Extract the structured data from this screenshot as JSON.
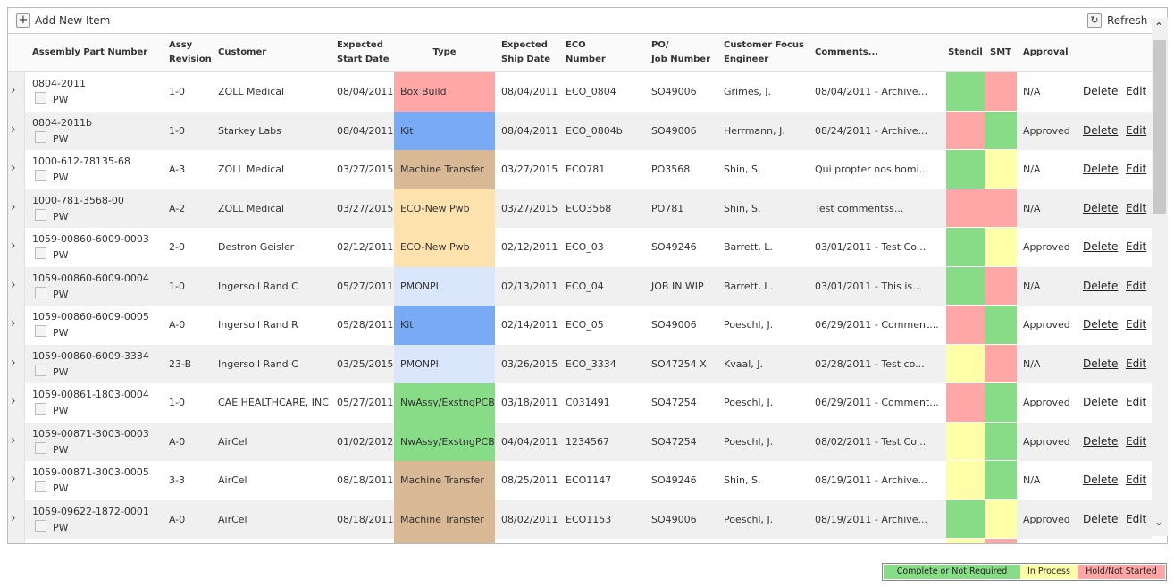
{
  "toolbar": {
    "add_label": "Add New Item",
    "refresh_label": "Refresh"
  },
  "columns": [
    {
      "lines": [
        "Assembly Part Number"
      ]
    },
    {
      "lines": [
        "Assy",
        "Revision"
      ]
    },
    {
      "lines": [
        "Customer"
      ]
    },
    {
      "lines": [
        "Expected",
        "Start Date"
      ]
    },
    {
      "lines": [
        "Type"
      ]
    },
    {
      "lines": [
        "Expected",
        "Ship Date"
      ]
    },
    {
      "lines": [
        "ECO",
        "Number"
      ]
    },
    {
      "lines": [
        "PO/",
        "Job Number"
      ]
    },
    {
      "lines": [
        "Customer Focus",
        "Engineer"
      ]
    },
    {
      "lines": [
        "Comments..."
      ]
    },
    {
      "lines": [
        "Stencil"
      ]
    },
    {
      "lines": [
        "SMT"
      ]
    },
    {
      "lines": [
        "Approval"
      ]
    }
  ],
  "row_labels": {
    "pw": "PW",
    "delete": "Delete",
    "edit": "Edit"
  },
  "rows": [
    {
      "part": "0804-2011",
      "rev": "1-0",
      "customer": "ZOLL Medical",
      "start": "08/04/2011",
      "type": "Box Build",
      "type_color": "#ffa6a6",
      "ship": "08/04/2011",
      "eco": "ECO_0804",
      "po": "SO49006",
      "engineer": "Grimes, J.",
      "comments": "08/04/2011 - Archive...",
      "stencil": "#88dc88",
      "smt": "#ffa6a6",
      "approval": "N/A"
    },
    {
      "part": "0804-2011b",
      "rev": "1-0",
      "customer": "Starkey Labs",
      "start": "08/04/2011",
      "type": "Kit",
      "type_color": "#79aaf5",
      "ship": "08/04/2011",
      "eco": "ECO_0804b",
      "po": "SO49006",
      "engineer": "Herrmann, J.",
      "comments": "08/24/2011 - Archive...",
      "stencil": "#ffa6a6",
      "smt": "#88dc88",
      "approval": "Approved"
    },
    {
      "part": "1000-612-78135-68",
      "rev": "A-3",
      "customer": "ZOLL Medical",
      "start": "03/27/2015",
      "type": "Machine Transfer",
      "type_color": "#d9b895",
      "ship": "03/27/2015",
      "eco": "ECO781",
      "po": "PO3568",
      "engineer": "Shin, S.",
      "comments": "Qui propter nos homi...",
      "stencil": "#88dc88",
      "smt": "#ffffaa",
      "approval": "N/A"
    },
    {
      "part": "1000-781-3568-00",
      "rev": "A-2",
      "customer": "ZOLL Medical",
      "start": "03/27/2015",
      "type": "ECO-New Pwb",
      "type_color": "#fde2ae",
      "ship": "03/27/2015",
      "eco": "ECO3568",
      "po": "PO781",
      "engineer": "Shin, S.",
      "comments": "Test commentss...",
      "stencil": "#ffa6a6",
      "smt": "#ffa6a6",
      "approval": "N/A"
    },
    {
      "part": "1059-00860-6009-0003",
      "rev": "2-0",
      "customer": "Destron Geisler",
      "start": "02/12/2011",
      "type": "ECO-New Pwb",
      "type_color": "#fde2ae",
      "ship": "02/12/2011",
      "eco": "ECO_03",
      "po": "SO49246",
      "engineer": "Barrett, L.",
      "comments": "03/01/2011 - Test Co...",
      "stencil": "#88dc88",
      "smt": "#ffffaa",
      "approval": "Approved"
    },
    {
      "part": "1059-00860-6009-0004",
      "rev": "1-0",
      "customer": "Ingersoll Rand C",
      "start": "05/27/2011",
      "type": "PMONPI",
      "type_color": "#d9e6fb",
      "ship": "02/13/2011",
      "eco": "ECO_04",
      "po": "JOB IN WIP",
      "engineer": "Barrett, L.",
      "comments": "03/01/2011 - This is...",
      "stencil": "#88dc88",
      "smt": "#ffa6a6",
      "approval": "N/A"
    },
    {
      "part": "1059-00860-6009-0005",
      "rev": "A-0",
      "customer": "Ingersoll Rand R",
      "start": "05/28/2011",
      "type": "Kit",
      "type_color": "#79aaf5",
      "ship": "02/14/2011",
      "eco": "ECO_05",
      "po": "SO49006",
      "engineer": "Poeschl, J.",
      "comments": "06/29/2011 - Comment...",
      "stencil": "#ffa6a6",
      "smt": "#88dc88",
      "approval": "Approved"
    },
    {
      "part": "1059-00860-6009-3334",
      "rev": "23-B",
      "customer": "Ingersoll Rand C",
      "start": "03/25/2015",
      "type": "PMONPI",
      "type_color": "#d9e6fb",
      "ship": "03/26/2015",
      "eco": "ECO_3334",
      "po": "SO47254 X",
      "engineer": "Kvaal, J.",
      "comments": "02/28/2011 - Test co...",
      "stencil": "#ffffaa",
      "smt": "#ffa6a6",
      "approval": "N/A"
    },
    {
      "part": "1059-00861-1803-0004",
      "rev": "1-0",
      "customer": "CAE HEALTHCARE, INC",
      "start": "05/27/2011",
      "type": "NwAssy/ExstngPCB",
      "type_color": "#88dc88",
      "ship": "03/18/2011",
      "eco": "C031491",
      "po": "SO47254",
      "engineer": "Poeschl, J.",
      "comments": "06/29/2011 - Comment...",
      "stencil": "#ffa6a6",
      "smt": "#88dc88",
      "approval": "Approved"
    },
    {
      "part": "1059-00871-3003-0003",
      "rev": "A-0",
      "customer": "AirCel",
      "start": "01/02/2012",
      "type": "NwAssy/ExstngPCB",
      "type_color": "#88dc88",
      "ship": "04/04/2011",
      "eco": "1234567",
      "po": "SO47254",
      "engineer": "Poeschl, J.",
      "comments": "08/02/2011 - Test Co...",
      "stencil": "#ffffaa",
      "smt": "#88dc88",
      "approval": "Approved"
    },
    {
      "part": "1059-00871-3003-0005",
      "rev": "3-3",
      "customer": "AirCel",
      "start": "08/18/2011",
      "type": "Machine Transfer",
      "type_color": "#d9b895",
      "ship": "08/25/2011",
      "eco": "ECO1147",
      "po": "SO49246",
      "engineer": "Shin, S.",
      "comments": "08/19/2011 - Archive...",
      "stencil": "#ffffaa",
      "smt": "#88dc88",
      "approval": "N/A"
    },
    {
      "part": "1059-09622-1872-0001",
      "rev": "A-0",
      "customer": "AirCel",
      "start": "08/18/2011",
      "type": "Machine Transfer",
      "type_color": "#d9b895",
      "ship": "08/02/2011",
      "eco": "ECO1153",
      "po": "SO49006",
      "engineer": "Poeschl, J.",
      "comments": "08/19/2011 - Archive...",
      "stencil": "#88dc88",
      "smt": "#ffffaa",
      "approval": "Approved"
    }
  ],
  "legend": [
    {
      "label": "Complete or Not Required",
      "color": "#88dc88"
    },
    {
      "label": "In Process",
      "color": "#ffffaa"
    },
    {
      "label": "Hold/Not Started",
      "color": "#ffa6a6"
    }
  ]
}
